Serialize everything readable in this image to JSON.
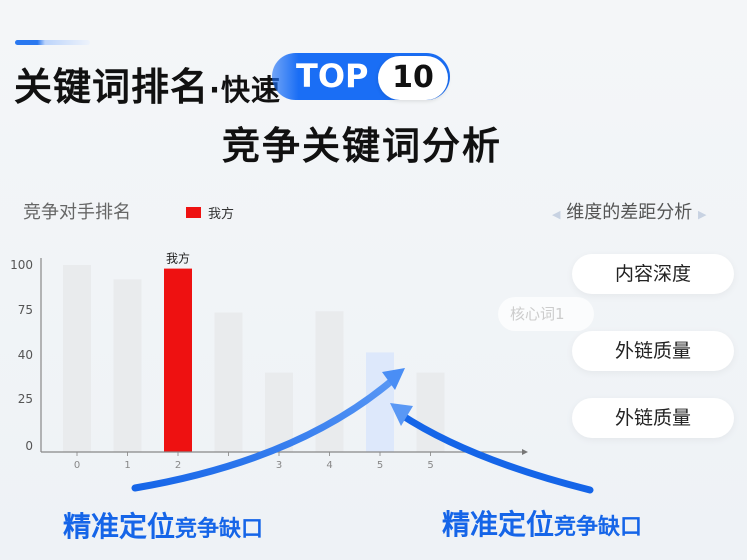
{
  "header": {
    "title_main": "关键词排名",
    "title_dot": "·快速",
    "badge_label": "TOP",
    "badge_number": "10",
    "subtitle": "竞争关键词分析",
    "accent_color": "#1a6ef5"
  },
  "chart_data": {
    "type": "bar",
    "title": "竞争对手排名",
    "legend": [
      {
        "name": "我方",
        "color": "#ee1111"
      }
    ],
    "categories": [
      "0",
      "1",
      "2",
      "",
      "3",
      "4",
      "5",
      "5"
    ],
    "values": [
      100,
      92,
      98,
      73,
      34,
      74,
      42,
      34
    ],
    "highlight": {
      "index": 2,
      "label": "我方",
      "color": "#ee1111"
    },
    "gap_index": 6,
    "yticks": [
      100,
      75,
      40,
      25,
      0
    ],
    "grid": false
  },
  "dimensions": {
    "title": "维度的差距分析",
    "items": [
      "内容深度",
      "外链质量",
      "外链质量"
    ],
    "keyword_tag": "核心词1"
  },
  "captions": [
    {
      "strong": "精准定位",
      "small": "竞争缺口"
    },
    {
      "strong": "精准定位",
      "small": "竞争缺口"
    }
  ]
}
